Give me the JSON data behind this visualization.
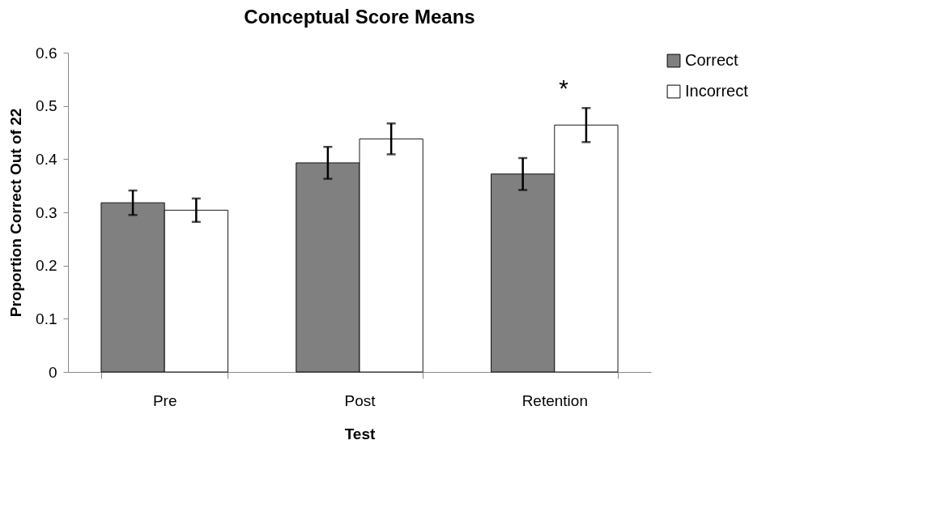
{
  "chart_data": {
    "type": "bar",
    "title": "Conceptual Score Means",
    "xlabel": "Test",
    "ylabel": "Proportion Correct Out of 22",
    "categories": [
      "Pre",
      "Post",
      "Retention"
    ],
    "series": [
      {
        "name": "Correct",
        "color": "#808080",
        "values": [
          0.318,
          0.393,
          0.372
        ],
        "errors": [
          0.023,
          0.03,
          0.03
        ]
      },
      {
        "name": "Incorrect",
        "color": "#ffffff",
        "values": [
          0.304,
          0.438,
          0.464
        ],
        "errors": [
          0.022,
          0.029,
          0.032
        ]
      }
    ],
    "ylim": [
      0,
      0.6
    ],
    "yticks": [
      0,
      0.1,
      0.2,
      0.3,
      0.4,
      0.5,
      0.6
    ],
    "grid": false,
    "legend": "right",
    "annotations": [
      "*"
    ]
  }
}
